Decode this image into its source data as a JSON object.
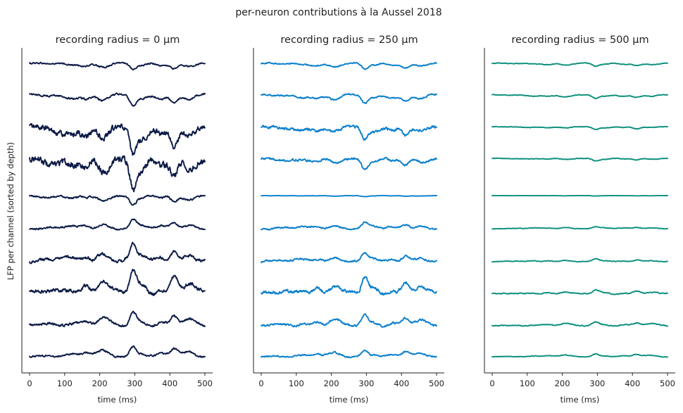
{
  "figure": {
    "suptitle": "per-neuron contributions à la Aussel 2018",
    "ylabel": "LFP per channel (sorted by depth)"
  },
  "chart_data": [
    {
      "type": "line",
      "title": "recording radius = 0 µm",
      "xlabel": "time (ms)",
      "xlim": [
        0,
        500
      ],
      "xticks": [
        0,
        100,
        200,
        300,
        400,
        500
      ],
      "tick_labels": [
        "0",
        "100",
        "200",
        "300",
        "400",
        "500"
      ],
      "color": "#0b1a45",
      "channels": 10,
      "trace_amplitude_scale": [
        0.35,
        0.55,
        1.5,
        1.5,
        0.45,
        0.45,
        0.85,
        1.3,
        0.7,
        0.55
      ],
      "trace_polarity": [
        -1,
        -1,
        -1,
        -1,
        -1,
        1,
        1,
        1,
        1,
        1
      ],
      "noise_level": [
        0.05,
        0.06,
        0.2,
        0.22,
        0.06,
        0.06,
        0.1,
        0.12,
        0.08,
        0.06
      ]
    },
    {
      "type": "line",
      "title": "recording radius = 250 µm",
      "xlabel": "time (ms)",
      "xlim": [
        0,
        500
      ],
      "xticks": [
        0,
        100,
        200,
        300,
        400,
        500
      ],
      "tick_labels": [
        "0",
        "100",
        "200",
        "300",
        "400",
        "500"
      ],
      "color": "#0a7fcc",
      "channels": 10,
      "trace_amplitude_scale": [
        0.3,
        0.45,
        0.65,
        0.5,
        0.05,
        0.3,
        0.45,
        0.85,
        0.55,
        0.35
      ],
      "trace_polarity": [
        -1,
        -1,
        -1,
        -1,
        -1,
        1,
        1,
        1,
        1,
        1
      ],
      "noise_level": [
        0.04,
        0.05,
        0.09,
        0.07,
        0.01,
        0.05,
        0.06,
        0.1,
        0.07,
        0.05
      ]
    },
    {
      "type": "line",
      "title": "recording radius = 500 µm",
      "xlabel": "time (ms)",
      "xlim": [
        0,
        500
      ],
      "xticks": [
        0,
        100,
        200,
        300,
        400,
        500
      ],
      "tick_labels": [
        "0",
        "100",
        "200",
        "300",
        "400",
        "500"
      ],
      "color": "#0a8f7c",
      "channels": 10,
      "trace_amplitude_scale": [
        0.15,
        0.17,
        0.15,
        0.12,
        0.02,
        0.1,
        0.14,
        0.22,
        0.2,
        0.15
      ],
      "trace_polarity": [
        -1,
        -1,
        -1,
        -1,
        -1,
        1,
        1,
        1,
        1,
        1
      ],
      "noise_level": [
        0.02,
        0.02,
        0.02,
        0.02,
        0.005,
        0.02,
        0.02,
        0.03,
        0.03,
        0.02
      ]
    }
  ]
}
